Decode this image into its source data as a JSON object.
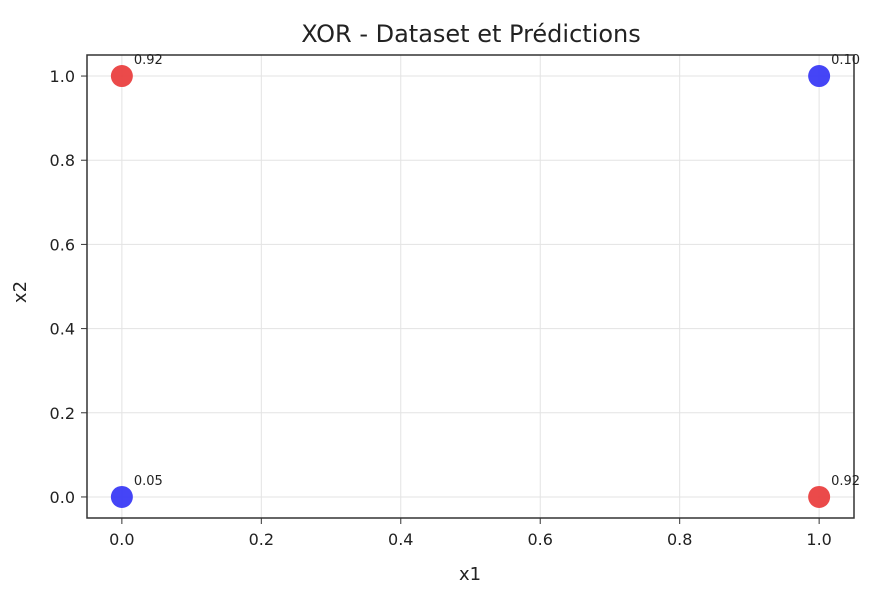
{
  "chart_data": {
    "type": "scatter",
    "title": "XOR - Dataset et Prédictions",
    "xlabel": "x1",
    "ylabel": "x2",
    "xlim": [
      -0.05,
      1.05
    ],
    "ylim": [
      -0.05,
      1.05
    ],
    "xticks": [
      "0.0",
      "0.2",
      "0.4",
      "0.6",
      "0.8",
      "1.0"
    ],
    "yticks": [
      "0.0",
      "0.2",
      "0.4",
      "0.6",
      "0.8",
      "1.0"
    ],
    "grid": true,
    "points": [
      {
        "x": 0,
        "y": 0,
        "color": "#3b3bf5",
        "label": "0.05"
      },
      {
        "x": 0,
        "y": 1,
        "color": "#ea4040",
        "label": "0.92"
      },
      {
        "x": 1,
        "y": 0,
        "color": "#ea4040",
        "label": "0.92"
      },
      {
        "x": 1,
        "y": 1,
        "color": "#3b3bf5",
        "label": "0.10"
      }
    ]
  }
}
